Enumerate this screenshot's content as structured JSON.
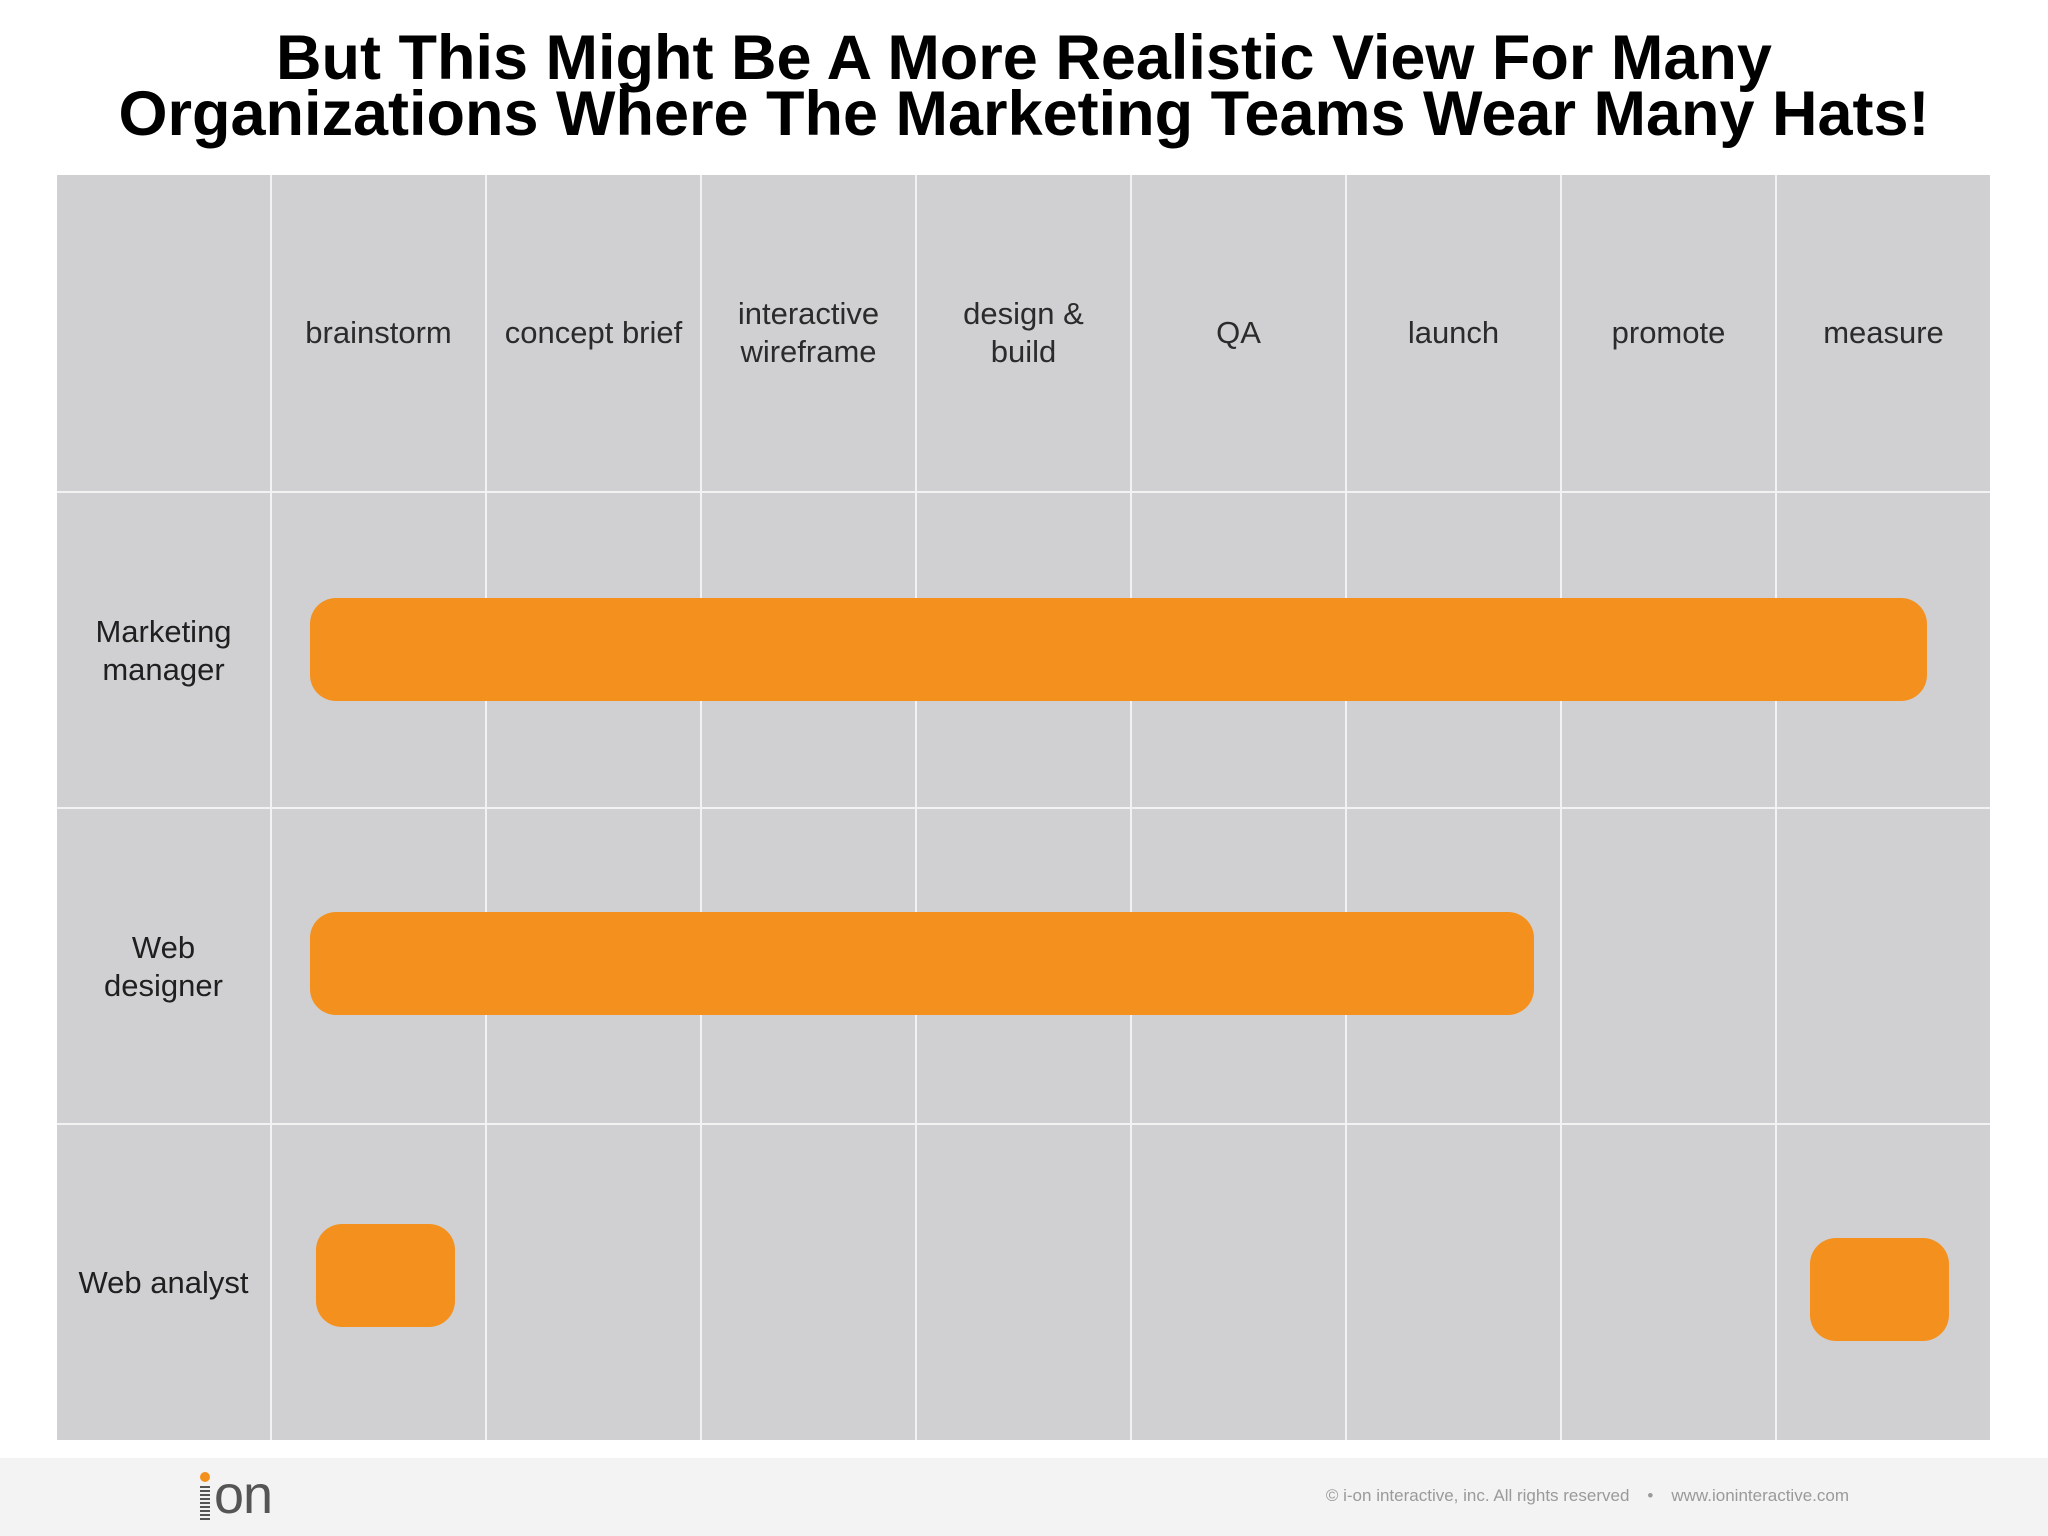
{
  "title": {
    "line1": "But This Might Be A More Realistic View For Many",
    "line2": "Organizations Where The Marketing Teams Wear Many Hats!"
  },
  "columns": [
    {
      "label": "brainstorm"
    },
    {
      "label": "concept brief"
    },
    {
      "label": "interactive wireframe"
    },
    {
      "label": "design & build"
    },
    {
      "label": "QA"
    },
    {
      "label": "launch"
    },
    {
      "label": "promote"
    },
    {
      "label": "measure"
    }
  ],
  "rows": [
    {
      "label": "Marketing manager",
      "spans": [
        {
          "from": "brainstorm",
          "to": "measure"
        }
      ]
    },
    {
      "label": "Web designer",
      "spans": [
        {
          "from": "brainstorm",
          "to": "launch"
        }
      ]
    },
    {
      "label": "Web analyst",
      "spans": [
        {
          "from": "brainstorm",
          "to": "brainstorm"
        },
        {
          "from": "measure",
          "to": "measure"
        }
      ]
    }
  ],
  "colors": {
    "bar": "#f4911e",
    "grid_background": "#d0d0d2",
    "grid_lines": "#f2f2f2"
  },
  "footer": {
    "logo_text": "on",
    "copyright": "© i-on interactive, inc. All rights reserved",
    "separator": "•",
    "website": "www.ioninteractive.com"
  }
}
